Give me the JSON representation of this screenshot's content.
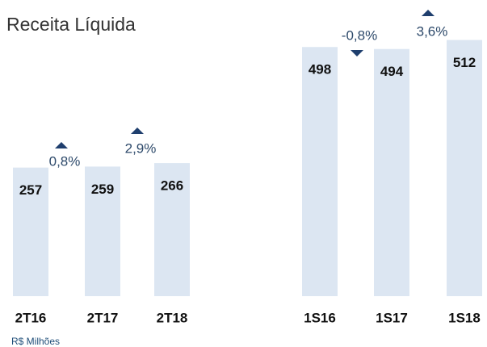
{
  "chart_data": {
    "type": "bar",
    "title": "Receita Líquida",
    "categories": [
      "2T16",
      "2T17",
      "2T18",
      "1S16",
      "1S17",
      "1S18"
    ],
    "values": [
      257,
      259,
      266,
      498,
      494,
      512
    ],
    "color": "#dce6f2",
    "annotations": [
      "0,8%",
      "2,9%",
      "-0,8%",
      "3,6%"
    ],
    "annotation_directions": [
      "up",
      "up",
      "down",
      "up"
    ],
    "arrow_color": "#1f3f6e",
    "footnote": "R$ Milhões"
  }
}
